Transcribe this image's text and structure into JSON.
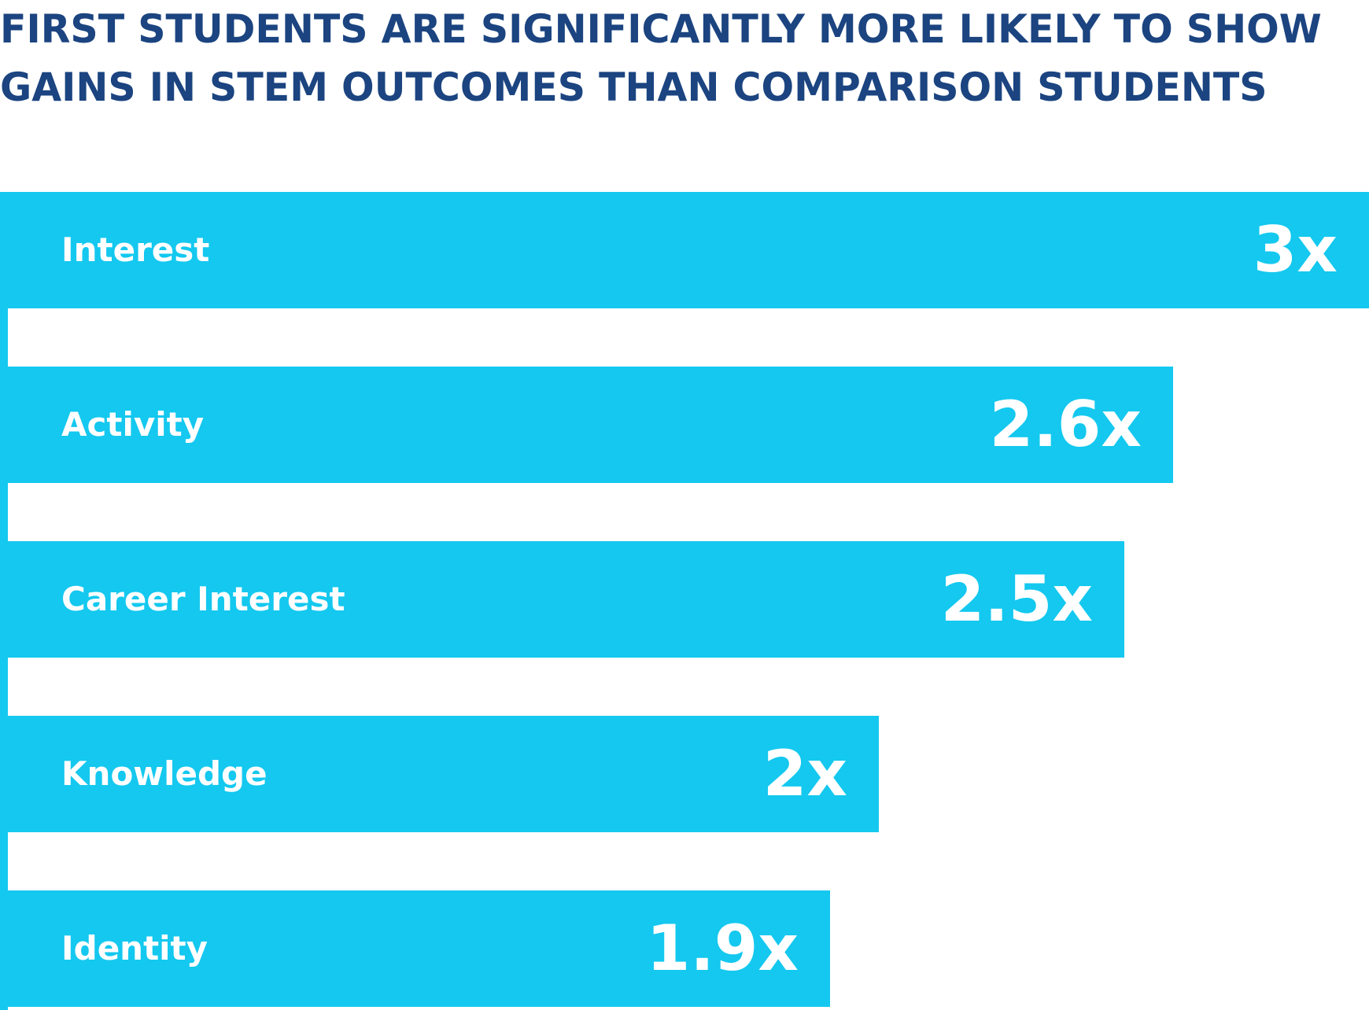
{
  "title_lines": [
    "FIRST STUDENTS ARE SIGNIFICANTLY MORE LIKELY TO SHOW",
    "GAINS IN STEM OUTCOMES THAN COMPARISON STUDENTS"
  ],
  "colors": {
    "title": "#1b4480",
    "bar": "#14c8ef",
    "bar_text": "#ffffff",
    "background": "#ffffff"
  },
  "chart_data": {
    "type": "bar",
    "orientation": "horizontal",
    "title": "FIRST STUDENTS ARE SIGNIFICANTLY MORE LIKELY TO SHOW GAINS IN STEM OUTCOMES THAN COMPARISON STUDENTS",
    "categories": [
      "Interest",
      "Activity",
      "Career Interest",
      "Knowledge",
      "Identity"
    ],
    "values": [
      3,
      2.6,
      2.5,
      2,
      1.9
    ],
    "value_labels": [
      "3x",
      "2.6x",
      "2.5x",
      "2x",
      "1.9x"
    ],
    "xlabel": "",
    "ylabel": "",
    "grid": false,
    "legend": "none"
  }
}
